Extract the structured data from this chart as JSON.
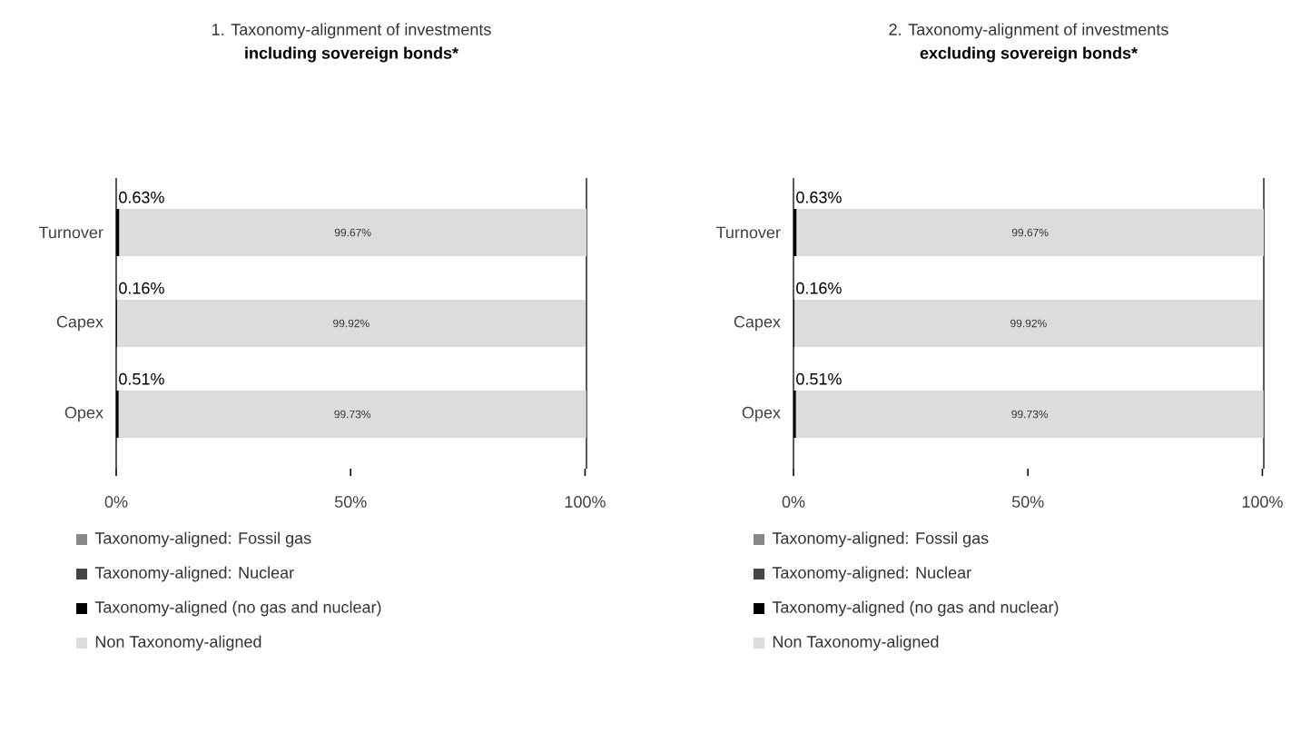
{
  "chart_data": [
    {
      "type": "bar",
      "orientation": "horizontal",
      "stacked": true,
      "title": "1. Taxonomy-alignment of investments",
      "subtitle": "including sovereign bonds*",
      "categories": [
        "Turnover",
        "Capex",
        "Opex"
      ],
      "xlim": [
        0,
        100.3
      ],
      "xticks": [
        {
          "value": 0,
          "label": "0%"
        },
        {
          "value": 50,
          "label": "50%"
        },
        {
          "value": 100,
          "label": "100%"
        }
      ],
      "legend": "bottom",
      "grid": false,
      "series": [
        {
          "name": "Taxonomy-aligned: Fossil gas",
          "color": "#888888",
          "values": [
            0,
            0,
            0
          ]
        },
        {
          "name": "Taxonomy-aligned: Nuclear",
          "color": "#444444",
          "values": [
            0,
            0,
            0
          ]
        },
        {
          "name": "Taxonomy-aligned (no gas and nuclear)",
          "color": "#000000",
          "values": [
            0.63,
            0.16,
            0.51
          ],
          "value_labels": [
            "0.63%",
            "0.16%",
            "0.51%"
          ]
        },
        {
          "name": "Non Taxonomy-aligned",
          "color": "#dcdcdc",
          "values": [
            99.67,
            99.92,
            99.73
          ],
          "value_labels": [
            "99.67%",
            "99.92%",
            "99.73%"
          ]
        }
      ]
    },
    {
      "type": "bar",
      "orientation": "horizontal",
      "stacked": true,
      "title": "2. Taxonomy-alignment of investments",
      "subtitle": "excluding sovereign bonds*",
      "categories": [
        "Turnover",
        "Capex",
        "Opex"
      ],
      "xlim": [
        0,
        100.3
      ],
      "xticks": [
        {
          "value": 0,
          "label": "0%"
        },
        {
          "value": 50,
          "label": "50%"
        },
        {
          "value": 100,
          "label": "100%"
        }
      ],
      "legend": "bottom",
      "grid": false,
      "series": [
        {
          "name": "Taxonomy-aligned: Fossil gas",
          "color": "#888888",
          "values": [
            0,
            0,
            0
          ]
        },
        {
          "name": "Taxonomy-aligned: Nuclear",
          "color": "#444444",
          "values": [
            0,
            0,
            0
          ]
        },
        {
          "name": "Taxonomy-aligned (no gas and nuclear)",
          "color": "#000000",
          "values": [
            0.63,
            0.16,
            0.51
          ],
          "value_labels": [
            "0.63%",
            "0.16%",
            "0.51%"
          ]
        },
        {
          "name": "Non Taxonomy-aligned",
          "color": "#dcdcdc",
          "values": [
            99.67,
            99.92,
            99.73
          ],
          "value_labels": [
            "99.67%",
            "99.92%",
            "99.73%"
          ]
        }
      ]
    }
  ]
}
